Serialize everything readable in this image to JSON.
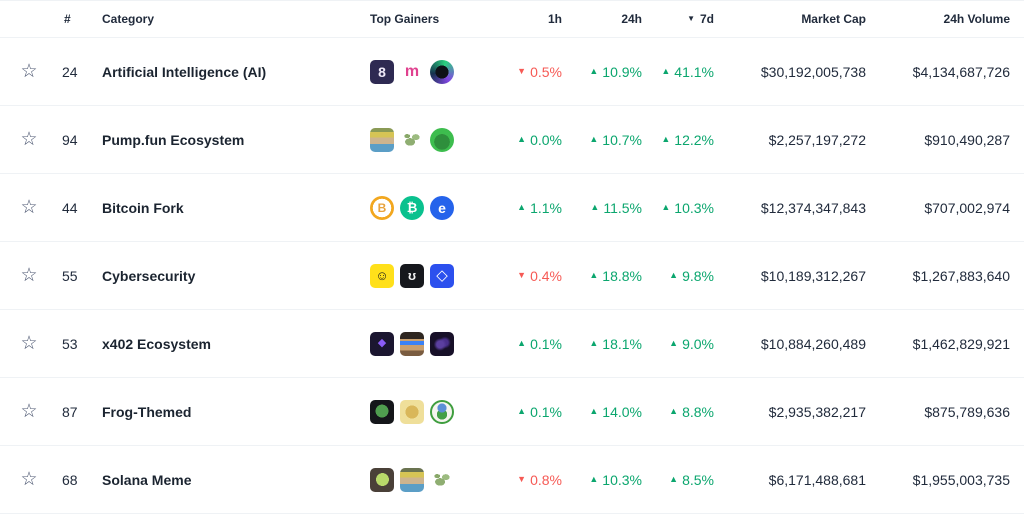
{
  "colors": {
    "up": "#0ba66e",
    "down": "#f65a55",
    "text": "#212b3c",
    "category": "#1b2430",
    "divider": "#eff2f5"
  },
  "icons": {
    "favorite_star": "☆",
    "sort_desc": "▼",
    "up_arrow": "▲",
    "down_arrow": "▼"
  },
  "table": {
    "columns": {
      "rank": "#",
      "category": "Category",
      "top_gainers": "Top Gainers",
      "h1": "1h",
      "h24": "24h",
      "d7": "7d",
      "market_cap": "Market Cap",
      "volume_24h": "24h Volume"
    },
    "sorted_by": "7d",
    "sort_direction": "desc",
    "rows": [
      {
        "rank": "24",
        "category": "Artificial Intelligence (AI)",
        "gainers": [
          {
            "name": "dark-purple-8-coin",
            "shape": "square",
            "bg": "#2e2a52",
            "fg": "#efeaf8",
            "glyph": "8"
          },
          {
            "name": "gradient-m-coin",
            "shape": "square",
            "bg": "#ffffff",
            "fg": "#e0418f",
            "glyph": "m",
            "size": "16px"
          },
          {
            "name": "green-purple-ring-coin",
            "shape": "circle",
            "bg": "radial-gradient(circle at 50% 50%, #0d1117 0 38%, transparent 39%), conic-gradient(from 20deg, #2ad17e, #8247e5, #16314d, #2ad17e)",
            "fg": "transparent",
            "glyph": ""
          }
        ],
        "h1": {
          "dir": "down",
          "val": "0.5%"
        },
        "h24": {
          "dir": "up",
          "val": "10.9%"
        },
        "d7": {
          "dir": "up",
          "val": "41.1%"
        },
        "market_cap": "$30,192,005,738",
        "volume_24h": "$4,134,687,726"
      },
      {
        "rank": "94",
        "category": "Pump.fun Ecosystem",
        "gainers": [
          {
            "name": "yellow-cap-character-coin",
            "shape": "square",
            "bg": "linear-gradient(180deg, #8a9a55 0 16%, #d6c455 16% 40%, #cdb48e 40% 66%, #5b9ec6 66% 100%)",
            "fg": "transparent",
            "glyph": ""
          },
          {
            "name": "green-dragon-coin",
            "shape": "square",
            "bg": "radial-gradient(ellipse 34% 26% at 42% 58%, #8fae72 0 60%, transparent 61%), radial-gradient(ellipse 26% 20% at 66% 38%, #9cbb80 0 60%, transparent 61%), radial-gradient(ellipse 20% 14% at 30% 34%, #88a869 0 60%, transparent 61%)",
            "fg": "transparent",
            "glyph": ""
          },
          {
            "name": "green-ogre-coin",
            "shape": "circle",
            "bg": "radial-gradient(circle at 50% 58%, #2e8f3c 0 42%, transparent 43%), #3dbd4e",
            "fg": "transparent",
            "glyph": ""
          }
        ],
        "h1": {
          "dir": "up",
          "val": "0.0%"
        },
        "h24": {
          "dir": "up",
          "val": "10.7%"
        },
        "d7": {
          "dir": "up",
          "val": "12.2%"
        },
        "market_cap": "$2,257,197,272",
        "volume_24h": "$910,490,287"
      },
      {
        "rank": "44",
        "category": "Bitcoin Fork",
        "gainers": [
          {
            "name": "bitcoin-gold-coin",
            "shape": "circle",
            "bg": "radial-gradient(circle at 50% 50%, #ffffff 0 54%, #f2a71f 55%)",
            "fg": "#e8a33d",
            "glyph": "B",
            "size": "12px"
          },
          {
            "name": "bitcoin-cash-coin",
            "shape": "circle",
            "bg": "#0ac18e",
            "fg": "#ffffff",
            "glyph": "₿",
            "size": "13px"
          },
          {
            "name": "ecash-coin",
            "shape": "circle",
            "bg": "#2563eb",
            "fg": "#ffffff",
            "glyph": "e",
            "size": "14px"
          }
        ],
        "h1": {
          "dir": "up",
          "val": "1.1%"
        },
        "h24": {
          "dir": "up",
          "val": "11.5%"
        },
        "d7": {
          "dir": "up",
          "val": "10.3%"
        },
        "market_cap": "$12,374,347,843",
        "volume_24h": "$707,002,974"
      },
      {
        "rank": "55",
        "category": "Cybersecurity",
        "gainers": [
          {
            "name": "yellow-tiger-coin",
            "shape": "square",
            "bg": "#ffe01a",
            "fg": "#1d1d1f",
            "glyph": "☺",
            "size": "13px"
          },
          {
            "name": "black-squiggle-coin",
            "shape": "square",
            "bg": "#16181d",
            "fg": "#f5f5f5",
            "glyph": "ʊ",
            "size": "13px"
          },
          {
            "name": "blue-hexagon-coin",
            "shape": "square",
            "bg": "#2c50ee",
            "fg": "#ffffff",
            "glyph": "◇",
            "size": "15px"
          }
        ],
        "h1": {
          "dir": "down",
          "val": "0.4%"
        },
        "h24": {
          "dir": "up",
          "val": "18.8%"
        },
        "d7": {
          "dir": "up",
          "val": "9.8%"
        },
        "market_cap": "$10,189,312,267",
        "volume_24h": "$1,267,883,640"
      },
      {
        "rank": "53",
        "category": "x402 Ecosystem",
        "gainers": [
          {
            "name": "purple-prism-coin",
            "shape": "square",
            "bg": "#1b1630",
            "fg": "#8b5cf6",
            "glyph": "◆",
            "size": "11px"
          },
          {
            "name": "pixel-avatar-glasses-coin",
            "shape": "square",
            "bg": "linear-gradient(180deg, rgba(0,0,0,0) 38%, #3b82f6 38% 54%, rgba(0,0,0,0) 54%), linear-gradient(180deg, #2e2620 0 30%, #caa06f 30% 78%, #7a5c40 78% 100%)",
            "fg": "transparent",
            "glyph": ""
          },
          {
            "name": "dark-glow-coin",
            "shape": "square",
            "bg": "radial-gradient(circle at 42% 52%, #5b3fa0 0 18%, transparent 34%), radial-gradient(circle at 62% 44%, #4a2f8c 0 16%, transparent 30%), #171028",
            "fg": "transparent",
            "glyph": ""
          }
        ],
        "h1": {
          "dir": "up",
          "val": "0.1%"
        },
        "h24": {
          "dir": "up",
          "val": "18.1%"
        },
        "d7": {
          "dir": "up",
          "val": "9.0%"
        },
        "market_cap": "$10,884,260,489",
        "volume_24h": "$1,462,829,921"
      },
      {
        "rank": "87",
        "category": "Frog-Themed",
        "gainers": [
          {
            "name": "pepe-coin",
            "shape": "square",
            "bg": "radial-gradient(circle at 50% 46%, #4f9e4f 0 36%, transparent 37%), #14161a",
            "fg": "transparent",
            "glyph": ""
          },
          {
            "name": "yellow-hood-frog-coin",
            "shape": "square",
            "bg": "radial-gradient(circle at 50% 50%, #d9b75a 0 38%, transparent 39%), #efdf9a",
            "fg": "transparent",
            "glyph": ""
          },
          {
            "name": "beanie-frog-coin",
            "shape": "circle",
            "bg": "radial-gradient(circle at 50% 30%, #5b8fd6 0 26%, transparent 27%), radial-gradient(circle at 50% 62%, #43a047 0 32%, transparent 33%), #f5f5ef",
            "fg": "transparent",
            "glyph": "",
            "border": "2px solid #3f9e3f"
          }
        ],
        "h1": {
          "dir": "up",
          "val": "0.1%"
        },
        "h24": {
          "dir": "up",
          "val": "14.0%"
        },
        "d7": {
          "dir": "up",
          "val": "8.8%"
        },
        "market_cap": "$2,935,382,217",
        "volume_24h": "$875,789,636"
      },
      {
        "rank": "68",
        "category": "Solana Meme",
        "gainers": [
          {
            "name": "green-egg-coin",
            "shape": "square",
            "bg": "radial-gradient(circle at 52% 48%, #b9d96a 0 36%, transparent 37%), #4a4038",
            "fg": "transparent",
            "glyph": ""
          },
          {
            "name": "yellow-cap-character-coin",
            "shape": "square",
            "bg": "linear-gradient(180deg, #6a7350 0 16%, #d6c455 16% 40%, #cdb48e 40% 66%, #5b9ec6 66% 100%)",
            "fg": "transparent",
            "glyph": ""
          },
          {
            "name": "green-dragon-coin",
            "shape": "square",
            "bg": "radial-gradient(ellipse 34% 26% at 42% 58%, #8fae72 0 60%, transparent 61%), radial-gradient(ellipse 26% 20% at 66% 38%, #9cbb80 0 60%, transparent 61%), radial-gradient(ellipse 20% 14% at 30% 34%, #88a869 0 60%, transparent 61%)",
            "fg": "transparent",
            "glyph": ""
          }
        ],
        "h1": {
          "dir": "down",
          "val": "0.8%"
        },
        "h24": {
          "dir": "up",
          "val": "10.3%"
        },
        "d7": {
          "dir": "up",
          "val": "8.5%"
        },
        "market_cap": "$6,171,488,681",
        "volume_24h": "$1,955,003,735"
      }
    ]
  }
}
